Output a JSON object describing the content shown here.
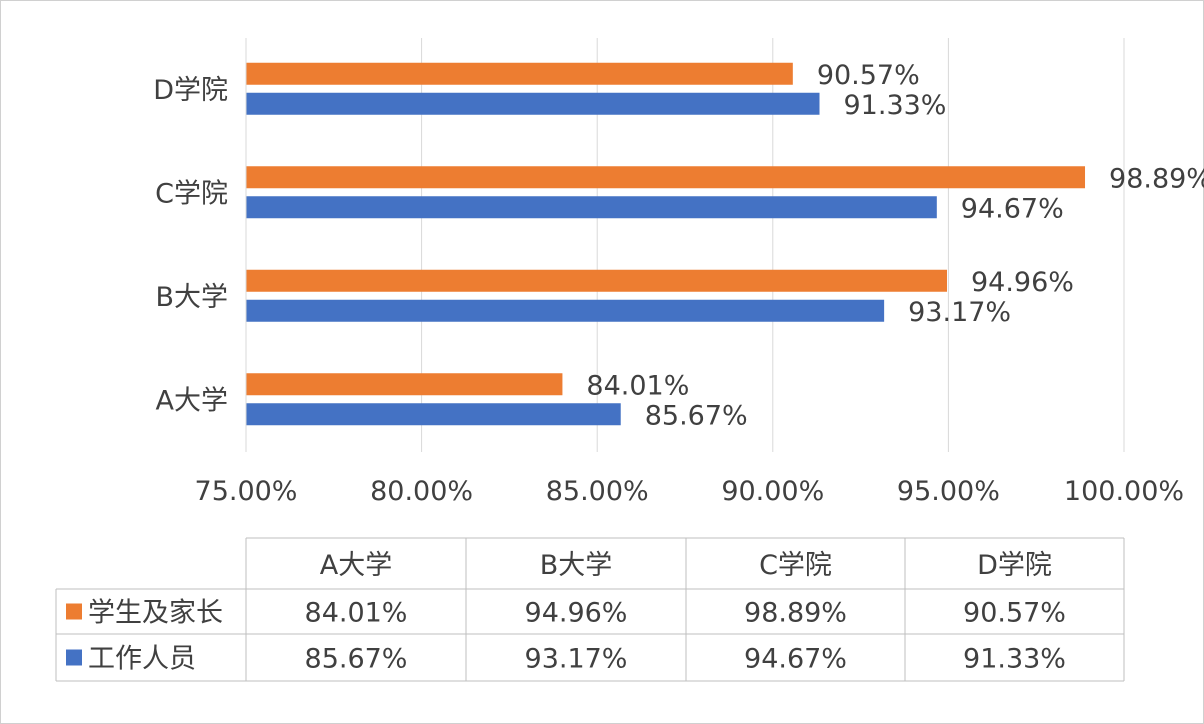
{
  "chart_data": {
    "type": "bar",
    "orientation": "horizontal",
    "categories": [
      "A大学",
      "B大学",
      "C学院",
      "D学院"
    ],
    "series": [
      {
        "name": "学生及家长",
        "color": "#ED7D31",
        "values": [
          84.01,
          94.96,
          98.89,
          90.57
        ],
        "labels": [
          "84.01%",
          "94.96%",
          "98.89%",
          "90.57%"
        ]
      },
      {
        "name": "工作人员",
        "color": "#4472C4",
        "values": [
          85.67,
          93.17,
          94.67,
          91.33
        ],
        "labels": [
          "85.67%",
          "93.17%",
          "94.67%",
          "91.33%"
        ]
      }
    ],
    "xlim": [
      75,
      100
    ],
    "x_ticks": [
      75,
      80,
      85,
      90,
      95,
      100
    ],
    "x_tick_labels": [
      "75.00%",
      "80.00%",
      "85.00%",
      "90.00%",
      "95.00%",
      "100.00%"
    ],
    "grid": true,
    "legend": "data-table",
    "data_table": {
      "headers": [
        "A大学",
        "B大学",
        "C学院",
        "D学院"
      ],
      "rows": [
        {
          "series": "学生及家长",
          "cells": [
            "84.01%",
            "94.96%",
            "98.89%",
            "90.57%"
          ]
        },
        {
          "series": "工作人员",
          "cells": [
            "85.67%",
            "93.17%",
            "94.67%",
            "91.33%"
          ]
        }
      ]
    }
  }
}
